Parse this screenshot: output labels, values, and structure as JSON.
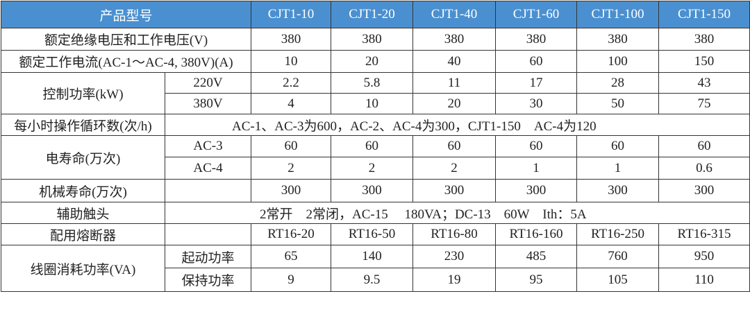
{
  "header": {
    "title": "产品型号",
    "models": [
      "CJT1-10",
      "CJT1-20",
      "CJT1-40",
      "CJT1-60",
      "CJT1-100",
      "CJT1-150"
    ],
    "bg_color": "#4a90d0"
  },
  "rows": {
    "insulation": {
      "label": "额定绝缘电压和工作电压(V)",
      "values": [
        "380",
        "380",
        "380",
        "380",
        "380",
        "380"
      ]
    },
    "current": {
      "label": "额定工作电流(AC-1～AC-4, 380V)(A)",
      "values": [
        "10",
        "20",
        "40",
        "60",
        "100",
        "150"
      ]
    },
    "power": {
      "label": "控制功率(kW)",
      "sub": [
        {
          "label": "220V",
          "values": [
            "2.2",
            "5.8",
            "11",
            "17",
            "28",
            "43"
          ]
        },
        {
          "label": "380V",
          "values": [
            "4",
            "10",
            "20",
            "30",
            "50",
            "75"
          ]
        }
      ]
    },
    "cycles": {
      "label": "每小时操作循环数(次/h)",
      "text": "AC-1、AC-3为600，AC-2、AC-4为300，CJT1-150　AC-4为120"
    },
    "elec_life": {
      "label": "电寿命(万次)",
      "sub": [
        {
          "label": "AC-3",
          "values": [
            "60",
            "60",
            "60",
            "60",
            "60",
            "60"
          ]
        },
        {
          "label": "AC-4",
          "values": [
            "2",
            "2",
            "2",
            "1",
            "1",
            "0.6"
          ]
        }
      ]
    },
    "mech_life": {
      "label": "机械寿命(万次)",
      "values": [
        "300",
        "300",
        "300",
        "300",
        "300",
        "300"
      ]
    },
    "aux": {
      "label": "辅助触头",
      "text": "2常开　2常闭，AC-15　 180VA；DC-13　60W　Ith：5A"
    },
    "fuse": {
      "label": "配用熔断器",
      "values": [
        "RT16-20",
        "RT16-50",
        "RT16-80",
        "RT16-160",
        "RT16-250",
        "RT16-315"
      ]
    },
    "coil": {
      "label": "线圈消耗功率(VA)",
      "sub": [
        {
          "label": "起动功率",
          "values": [
            "65",
            "140",
            "230",
            "485",
            "760",
            "950"
          ]
        },
        {
          "label": "保持功率",
          "values": [
            "9",
            "9.5",
            "19",
            "95",
            "105",
            "110"
          ]
        }
      ]
    }
  }
}
